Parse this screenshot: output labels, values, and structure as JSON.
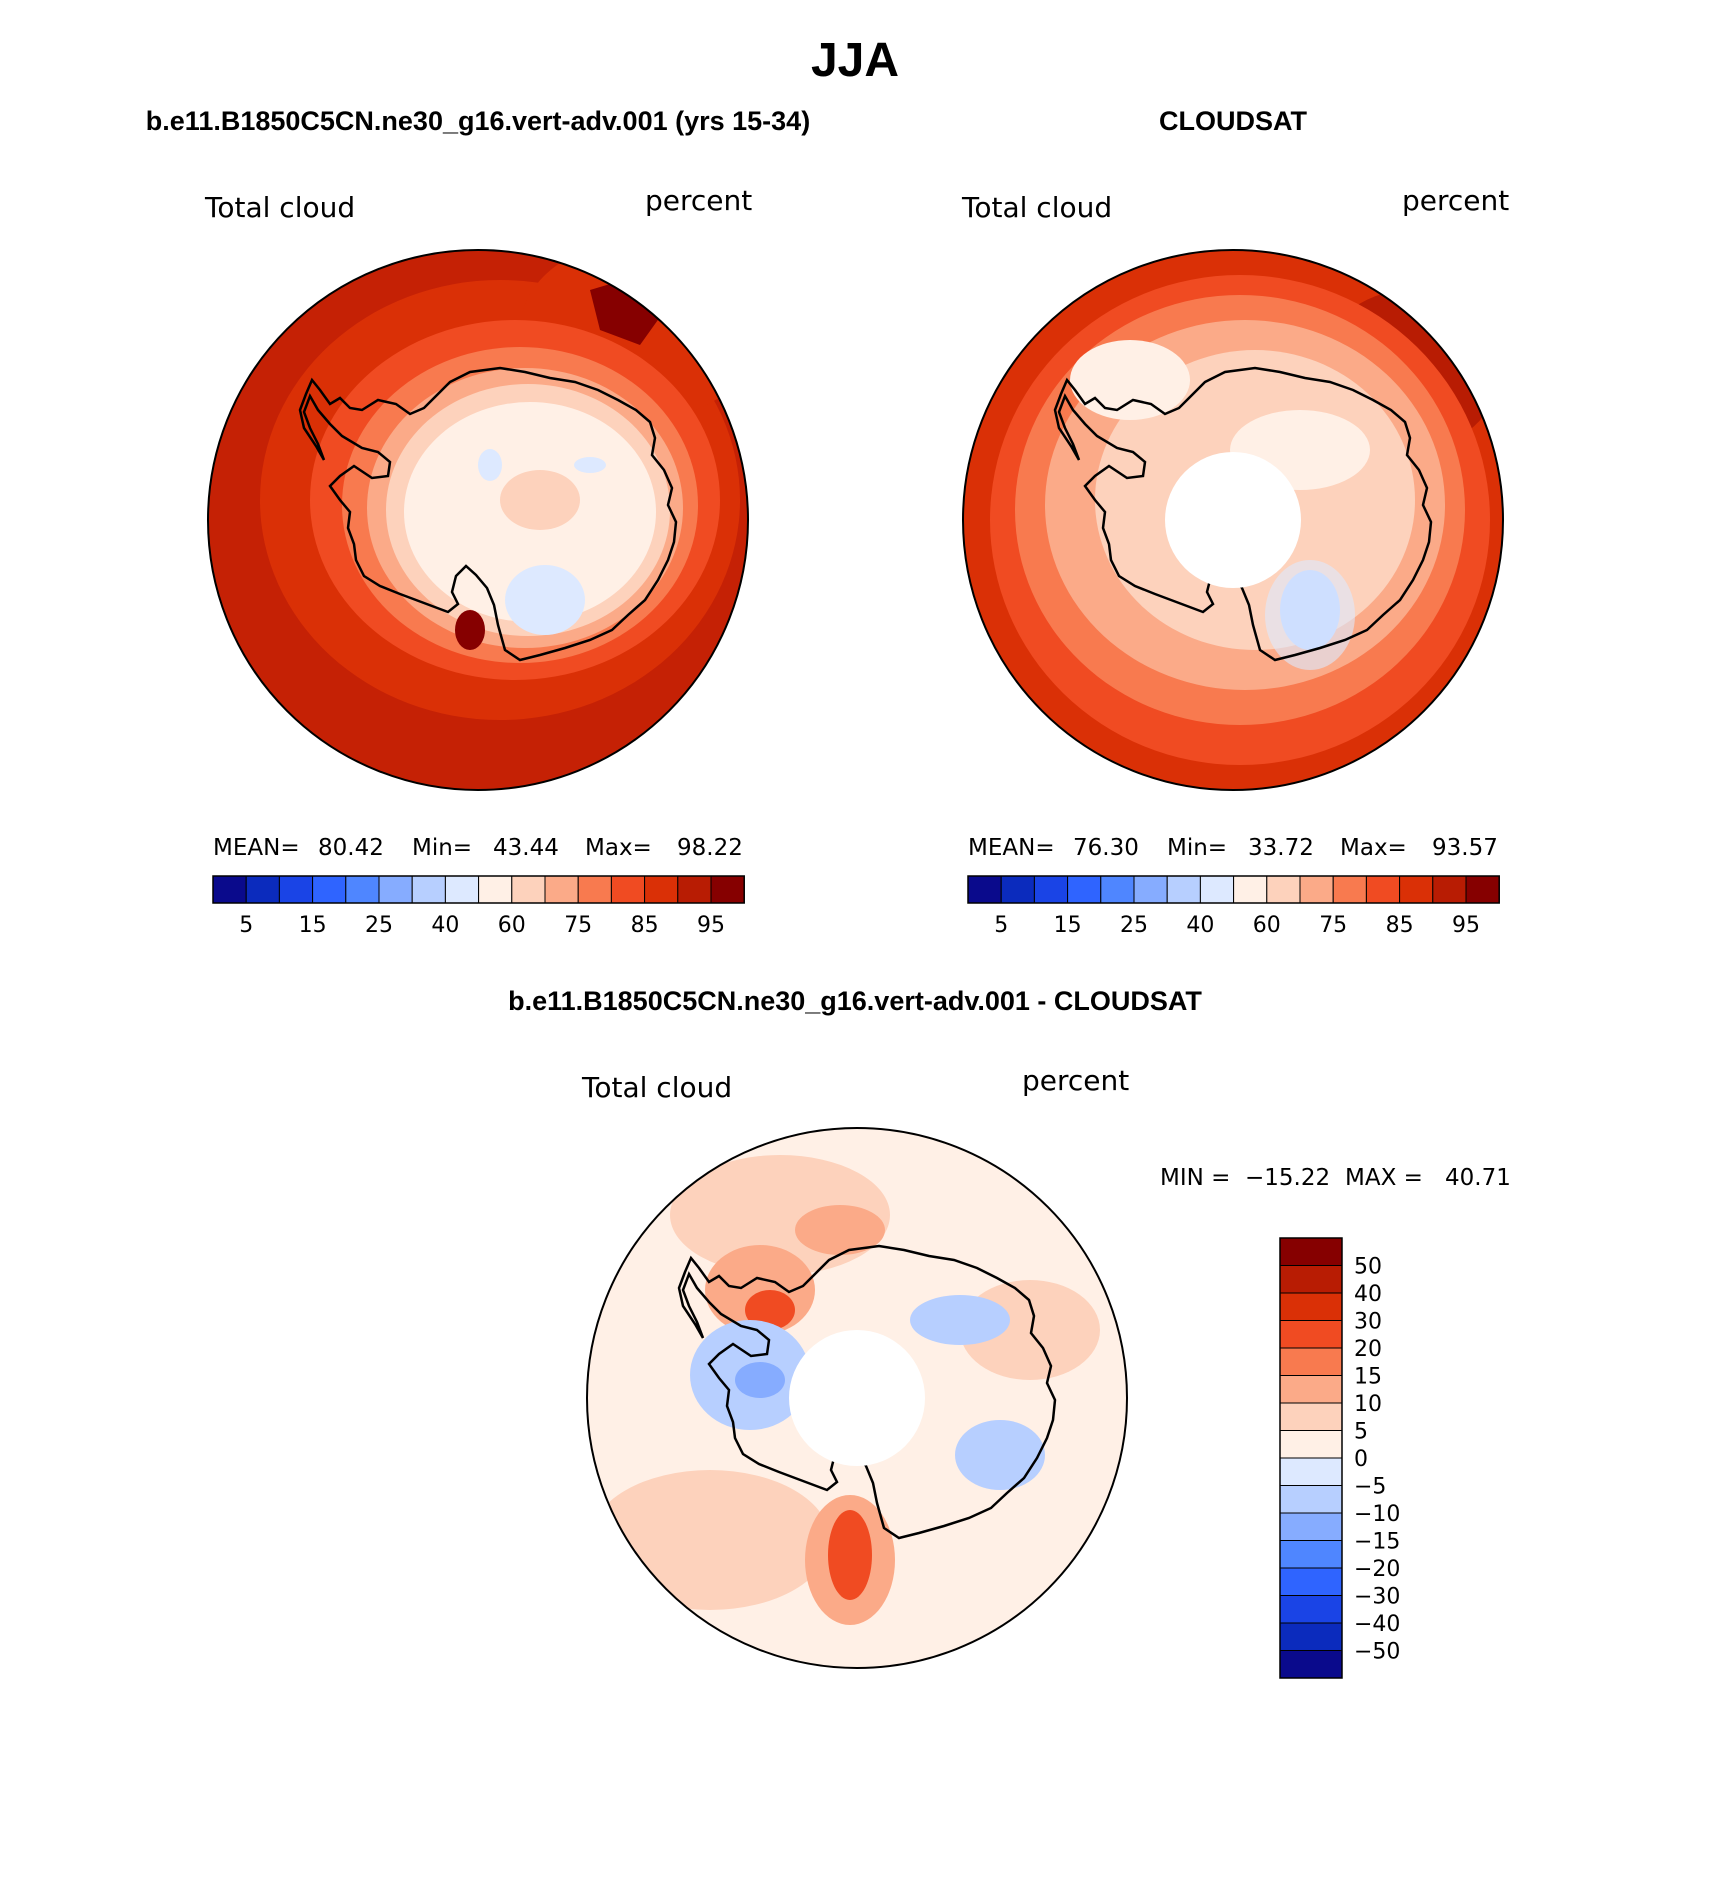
{
  "figure": {
    "season": "JJA",
    "left_panel_title": "b.e11.B1850C5CN.ne30_g16.vert-adv.001 (yrs 15-34)",
    "right_panel_title": "CLOUDSAT",
    "diff_panel_title": "b.e11.B1850C5CN.ne30_g16.vert-adv.001 - CLOUDSAT"
  },
  "panels": [
    {
      "id": "model",
      "variable": "Total cloud",
      "units": "percent",
      "stats": {
        "mean_label": "MEAN=",
        "mean": "80.42",
        "min_label": "Min=",
        "min": "43.44",
        "max_label": "Max=",
        "max": "98.22"
      }
    },
    {
      "id": "obs",
      "variable": "Total cloud",
      "units": "percent",
      "stats": {
        "mean_label": "MEAN=",
        "mean": "76.30",
        "min_label": "Min=",
        "min": "33.72",
        "max_label": "Max=",
        "max": "93.57"
      }
    },
    {
      "id": "diff",
      "variable": "Total cloud",
      "units": "percent",
      "stats": {
        "min_label": "MIN =",
        "min": "−15.22",
        "max_label": "MAX =",
        "max": "40.71"
      }
    }
  ],
  "colorbars": {
    "absolute": {
      "colors": [
        "#0a0a8c",
        "#0b2bbd",
        "#1a44e6",
        "#2f64ff",
        "#4f86ff",
        "#86acff",
        "#b7cfff",
        "#dde9ff",
        "#fff0e6",
        "#fdd2bc",
        "#fbaa88",
        "#f87a4f",
        "#f04b22",
        "#da3006",
        "#b81c03",
        "#860000"
      ],
      "tick_labels": [
        "5",
        "15",
        "25",
        "40",
        "60",
        "75",
        "85",
        "95"
      ]
    },
    "difference": {
      "colors_top_to_bottom": [
        "#860000",
        "#b81c03",
        "#da3006",
        "#f04b22",
        "#f87a4f",
        "#fbaa88",
        "#fdd2bc",
        "#fff0e6",
        "#dde9ff",
        "#b7cfff",
        "#86acff",
        "#4f86ff",
        "#2f64ff",
        "#1a44e6",
        "#0b2bbd",
        "#0a0a8c"
      ],
      "tick_labels_top_to_bottom": [
        "50",
        "40",
        "30",
        "20",
        "15",
        "10",
        "5",
        "0",
        "−5",
        "−10",
        "−15",
        "−20",
        "−30",
        "−40",
        "−50"
      ]
    }
  },
  "map_colors": {
    "model_ocean": "#c52105",
    "model_midlat_band": "#da3006",
    "model_edge": "#f04b22",
    "model_coast": "#f87a4f",
    "model_interior": "#fff0e6",
    "obs_ocean": "#da3006",
    "obs_ring": "#f87a4f",
    "obs_inner": "#fbaa88",
    "obs_ice": "#fdd2bc",
    "diff_background": "#fff0e6",
    "diff_positive": "#fbaa88",
    "diff_strong": "#f04b22",
    "diff_negative": "#b7cfff",
    "coastline": "#000000"
  }
}
